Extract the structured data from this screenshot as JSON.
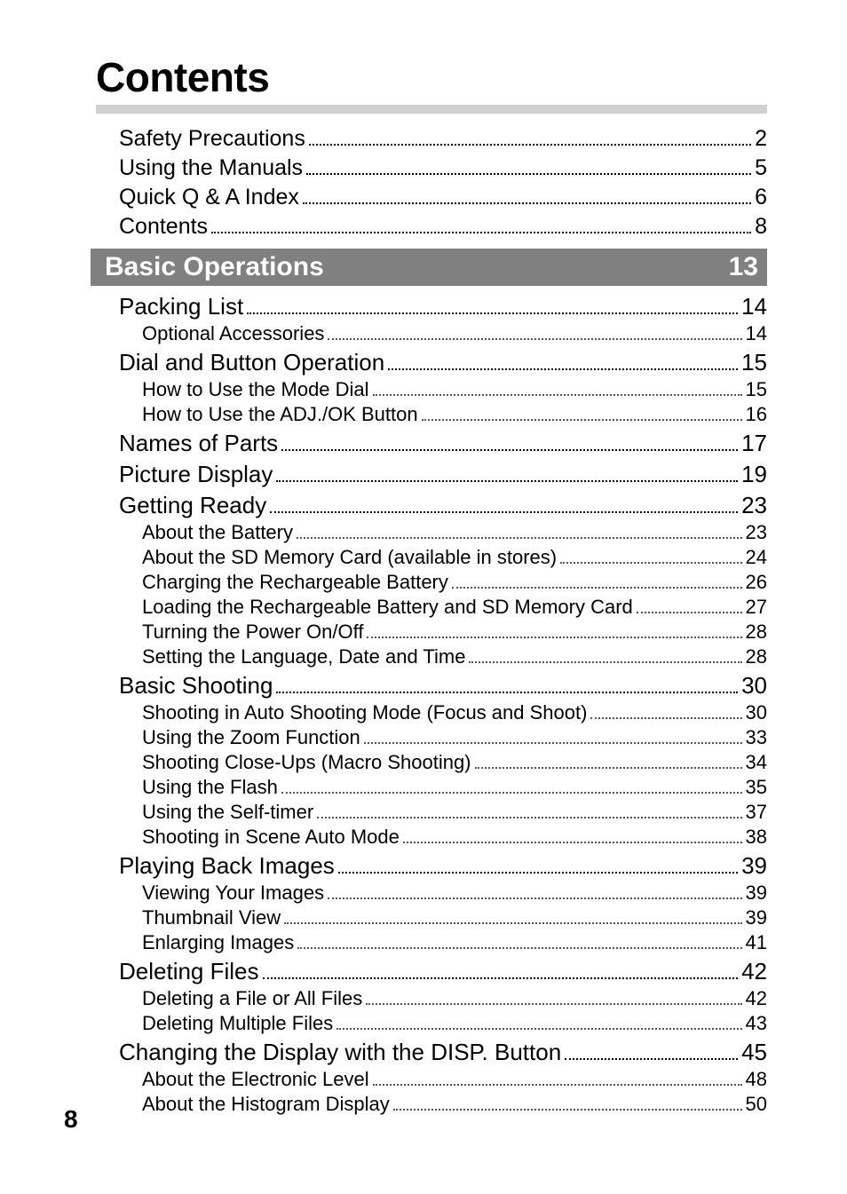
{
  "title": "Contents",
  "page_number": "8",
  "colors": {
    "band_bg": "#808080",
    "band_text": "#ffffff",
    "underline": "#d0d0d0",
    "text": "#000000"
  },
  "front": [
    {
      "label": "Safety Precautions",
      "page": "2"
    },
    {
      "label": "Using the Manuals",
      "page": "5"
    },
    {
      "label": "Quick Q & A Index",
      "page": "6"
    },
    {
      "label": "Contents",
      "page": "8"
    }
  ],
  "section": {
    "title": "Basic Operations",
    "page": "13"
  },
  "toc": [
    {
      "level": 1,
      "label": "Packing List",
      "page": "14"
    },
    {
      "level": 2,
      "label": "Optional Accessories",
      "page": "14"
    },
    {
      "level": 1,
      "label": "Dial and Button Operation",
      "page": "15"
    },
    {
      "level": 2,
      "label": "How to Use the Mode Dial",
      "page": "15"
    },
    {
      "level": 2,
      "label": "How to Use the ADJ./OK Button",
      "page": "16"
    },
    {
      "level": 1,
      "label": "Names of Parts",
      "page": "17"
    },
    {
      "level": 1,
      "label": "Picture Display",
      "page": "19"
    },
    {
      "level": 1,
      "label": "Getting Ready",
      "page": "23"
    },
    {
      "level": 2,
      "label": "About the Battery",
      "page": "23"
    },
    {
      "level": 2,
      "label": "About the SD Memory Card (available in stores)",
      "page": "24"
    },
    {
      "level": 2,
      "label": "Charging the Rechargeable Battery",
      "page": "26"
    },
    {
      "level": 2,
      "label": "Loading the Rechargeable Battery and SD Memory Card",
      "page": "27"
    },
    {
      "level": 2,
      "label": "Turning the Power On/Off",
      "page": "28"
    },
    {
      "level": 2,
      "label": "Setting the Language, Date and Time",
      "page": "28"
    },
    {
      "level": 1,
      "label": "Basic Shooting",
      "page": "30"
    },
    {
      "level": 2,
      "label": "Shooting in Auto Shooting Mode (Focus and Shoot)",
      "page": "30"
    },
    {
      "level": 2,
      "label": "Using the Zoom Function",
      "page": "33"
    },
    {
      "level": 2,
      "label": "Shooting Close-Ups (Macro Shooting)",
      "page": "34"
    },
    {
      "level": 2,
      "label": "Using the Flash",
      "page": "35"
    },
    {
      "level": 2,
      "label": "Using the Self-timer",
      "page": "37"
    },
    {
      "level": 2,
      "label": "Shooting in Scene Auto Mode",
      "page": "38"
    },
    {
      "level": 1,
      "label": "Playing Back Images",
      "page": "39"
    },
    {
      "level": 2,
      "label": "Viewing Your Images",
      "page": "39"
    },
    {
      "level": 2,
      "label": "Thumbnail View",
      "page": "39"
    },
    {
      "level": 2,
      "label": "Enlarging Images",
      "page": "41"
    },
    {
      "level": 1,
      "label": "Deleting Files",
      "page": "42"
    },
    {
      "level": 2,
      "label": "Deleting a File or All Files",
      "page": "42"
    },
    {
      "level": 2,
      "label": "Deleting Multiple Files",
      "page": "43"
    },
    {
      "level": 1,
      "label": "Changing the Display with the DISP. Button",
      "page": "45"
    },
    {
      "level": 2,
      "label": "About the Electronic Level",
      "page": "48"
    },
    {
      "level": 2,
      "label": "About the Histogram Display",
      "page": "50"
    }
  ]
}
